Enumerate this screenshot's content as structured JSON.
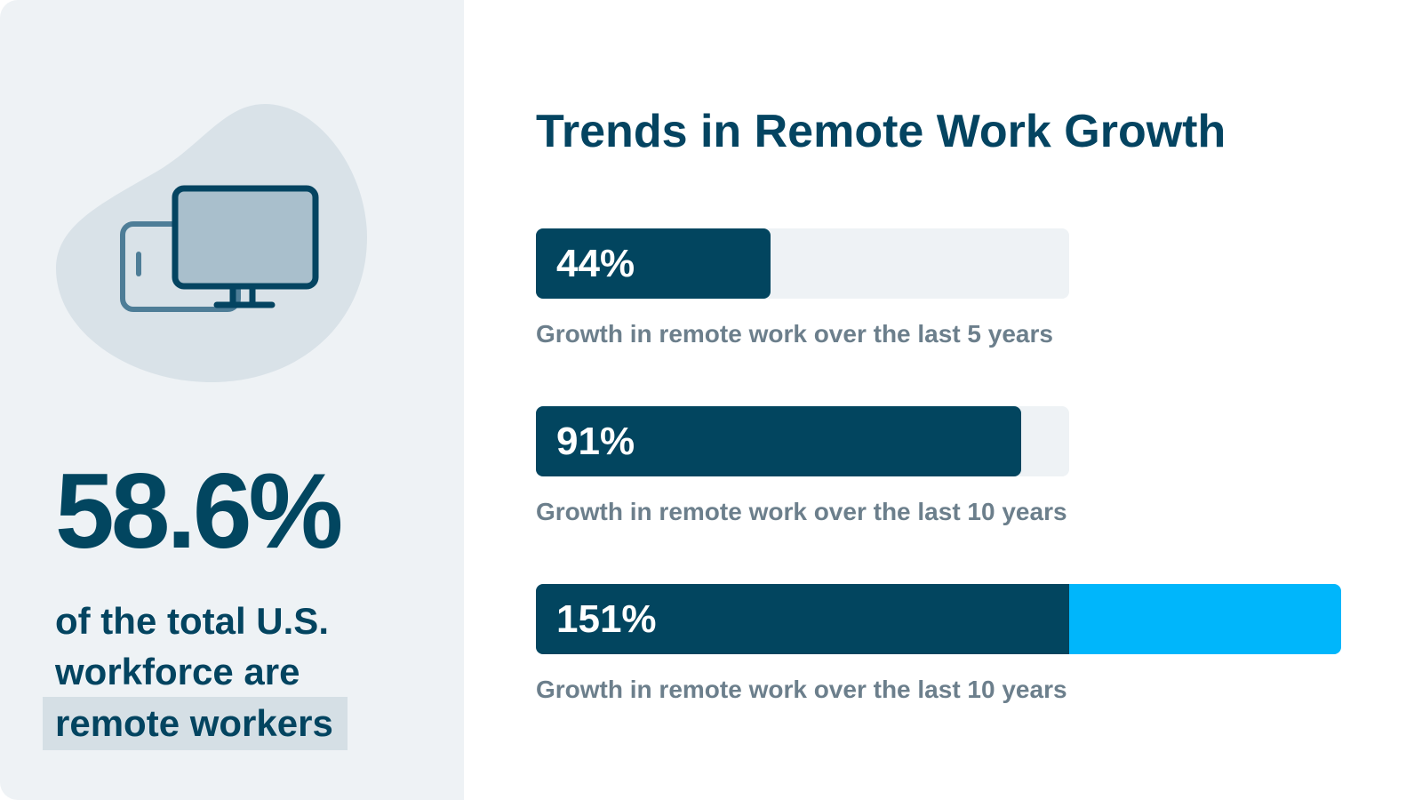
{
  "summary": {
    "stat": "58.6%",
    "caption_line1": "of the total U.S.",
    "caption_line2": "workforce are",
    "caption_highlight": "remote workers",
    "icon": "desktop-and-tablet-icon"
  },
  "colors": {
    "primary": "#02455f",
    "accent": "#00b6fb",
    "track": "#eef2f5",
    "muted_text": "#6c7f8c",
    "panel_bg": "#eef2f5"
  },
  "chart_data": {
    "type": "bar",
    "orientation": "horizontal",
    "title": "Trends in Remote Work Growth",
    "scale_max": 100,
    "bars": [
      {
        "value": 44,
        "label": "44%",
        "description": "Growth in remote work over the last 5 years"
      },
      {
        "value": 91,
        "label": "91%",
        "description": "Growth in remote work over the last 10 years"
      },
      {
        "value": 151,
        "label": "151%",
        "description": "Growth in remote work over the last 10 years"
      }
    ]
  }
}
